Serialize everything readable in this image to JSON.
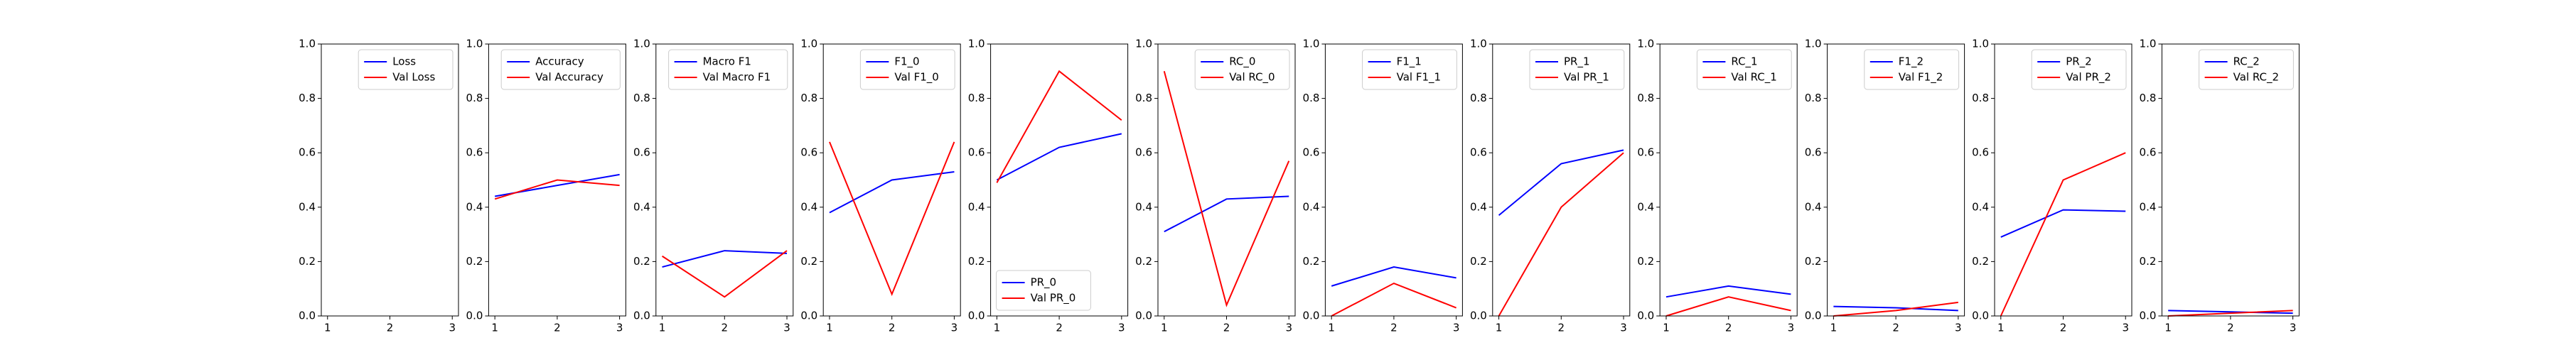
{
  "chart_data": [
    {
      "type": "line",
      "x": [
        1,
        2,
        3
      ],
      "xlim": [
        0.9,
        3.1
      ],
      "xticks": [
        1,
        2,
        3
      ],
      "ylim": [
        0,
        1
      ],
      "yticks": [
        {
          "value": 0,
          "label": "0.0"
        },
        0.2,
        0.4,
        0.6,
        0.8,
        {
          "value": 1,
          "label": "1.0"
        }
      ],
      "legend": "upper right",
      "series": [
        {
          "name": "Loss",
          "color": "#0000ff",
          "values": [
            null,
            null,
            null
          ]
        },
        {
          "name": "Val Loss",
          "color": "#ff0000",
          "values": [
            null,
            null,
            null
          ]
        }
      ]
    },
    {
      "type": "line",
      "x": [
        1,
        2,
        3
      ],
      "xlim": [
        0.9,
        3.1
      ],
      "xticks": [
        1,
        2,
        3
      ],
      "ylim": [
        0,
        1
      ],
      "yticks": [
        {
          "value": 0,
          "label": "0.0"
        },
        0.2,
        0.4,
        0.6,
        0.8,
        {
          "value": 1,
          "label": "1.0"
        }
      ],
      "legend": "upper right",
      "series": [
        {
          "name": "Accuracy",
          "color": "#0000ff",
          "values": [
            0.44,
            0.48,
            0.52
          ]
        },
        {
          "name": "Val Accuracy",
          "color": "#ff0000",
          "values": [
            0.43,
            0.5,
            0.48
          ]
        }
      ]
    },
    {
      "type": "line",
      "x": [
        1,
        2,
        3
      ],
      "xlim": [
        0.9,
        3.1
      ],
      "xticks": [
        1,
        2,
        3
      ],
      "ylim": [
        0,
        1
      ],
      "yticks": [
        {
          "value": 0,
          "label": "0.0"
        },
        0.2,
        0.4,
        0.6,
        0.8,
        {
          "value": 1,
          "label": "1.0"
        }
      ],
      "legend": "upper right",
      "series": [
        {
          "name": "Macro F1",
          "color": "#0000ff",
          "values": [
            0.18,
            0.24,
            0.23
          ]
        },
        {
          "name": "Val Macro F1",
          "color": "#ff0000",
          "values": [
            0.22,
            0.07,
            0.24
          ]
        }
      ]
    },
    {
      "type": "line",
      "x": [
        1,
        2,
        3
      ],
      "xlim": [
        0.9,
        3.1
      ],
      "xticks": [
        1,
        2,
        3
      ],
      "ylim": [
        0,
        1
      ],
      "yticks": [
        {
          "value": 0,
          "label": "0.0"
        },
        0.2,
        0.4,
        0.6,
        0.8,
        {
          "value": 1,
          "label": "1.0"
        }
      ],
      "legend": "upper right",
      "series": [
        {
          "name": "F1_0",
          "color": "#0000ff",
          "values": [
            0.38,
            0.5,
            0.53
          ]
        },
        {
          "name": "Val F1_0",
          "color": "#ff0000",
          "values": [
            0.64,
            0.08,
            0.64
          ]
        }
      ]
    },
    {
      "type": "line",
      "x": [
        1,
        2,
        3
      ],
      "xlim": [
        0.9,
        3.1
      ],
      "xticks": [
        1,
        2,
        3
      ],
      "ylim": [
        0,
        1
      ],
      "yticks": [
        {
          "value": 0,
          "label": "0.0"
        },
        0.2,
        0.4,
        0.6,
        0.8,
        {
          "value": 1,
          "label": "1.0"
        }
      ],
      "legend": "lower left",
      "series": [
        {
          "name": "PR_0",
          "color": "#0000ff",
          "values": [
            0.5,
            0.62,
            0.67
          ]
        },
        {
          "name": "Val PR_0",
          "color": "#ff0000",
          "values": [
            0.49,
            0.9,
            0.72
          ]
        }
      ]
    },
    {
      "type": "line",
      "x": [
        1,
        2,
        3
      ],
      "xlim": [
        0.9,
        3.1
      ],
      "xticks": [
        1,
        2,
        3
      ],
      "ylim": [
        0,
        1
      ],
      "yticks": [
        {
          "value": 0,
          "label": "0.0"
        },
        0.2,
        0.4,
        0.6,
        0.8,
        {
          "value": 1,
          "label": "1.0"
        }
      ],
      "legend": "upper right",
      "series": [
        {
          "name": "RC_0",
          "color": "#0000ff",
          "values": [
            0.31,
            0.43,
            0.44
          ]
        },
        {
          "name": "Val RC_0",
          "color": "#ff0000",
          "values": [
            0.9,
            0.04,
            0.57
          ]
        }
      ]
    },
    {
      "type": "line",
      "x": [
        1,
        2,
        3
      ],
      "xlim": [
        0.9,
        3.1
      ],
      "xticks": [
        1,
        2,
        3
      ],
      "ylim": [
        0,
        1
      ],
      "yticks": [
        {
          "value": 0,
          "label": "0.0"
        },
        0.2,
        0.4,
        0.6,
        0.8,
        {
          "value": 1,
          "label": "1.0"
        }
      ],
      "legend": "upper right",
      "series": [
        {
          "name": "F1_1",
          "color": "#0000ff",
          "values": [
            0.11,
            0.18,
            0.14
          ]
        },
        {
          "name": "Val F1_1",
          "color": "#ff0000",
          "values": [
            0.0,
            0.12,
            0.03
          ]
        }
      ]
    },
    {
      "type": "line",
      "x": [
        1,
        2,
        3
      ],
      "xlim": [
        0.9,
        3.1
      ],
      "xticks": [
        1,
        2,
        3
      ],
      "ylim": [
        0,
        1
      ],
      "yticks": [
        {
          "value": 0,
          "label": "0.0"
        },
        0.2,
        0.4,
        0.6,
        0.8,
        {
          "value": 1,
          "label": "1.0"
        }
      ],
      "legend": "upper right",
      "series": [
        {
          "name": "PR_1",
          "color": "#0000ff",
          "values": [
            0.37,
            0.56,
            0.61
          ]
        },
        {
          "name": "Val PR_1",
          "color": "#ff0000",
          "values": [
            0.0,
            0.4,
            0.6
          ]
        }
      ]
    },
    {
      "type": "line",
      "x": [
        1,
        2,
        3
      ],
      "xlim": [
        0.9,
        3.1
      ],
      "xticks": [
        1,
        2,
        3
      ],
      "ylim": [
        0,
        1
      ],
      "yticks": [
        {
          "value": 0,
          "label": "0.0"
        },
        0.2,
        0.4,
        0.6,
        0.8,
        {
          "value": 1,
          "label": "1.0"
        }
      ],
      "legend": "upper right",
      "series": [
        {
          "name": "RC_1",
          "color": "#0000ff",
          "values": [
            0.07,
            0.11,
            0.08
          ]
        },
        {
          "name": "Val RC_1",
          "color": "#ff0000",
          "values": [
            0.0,
            0.07,
            0.02
          ]
        }
      ]
    },
    {
      "type": "line",
      "x": [
        1,
        2,
        3
      ],
      "xlim": [
        0.9,
        3.1
      ],
      "xticks": [
        1,
        2,
        3
      ],
      "ylim": [
        0,
        1
      ],
      "yticks": [
        {
          "value": 0,
          "label": "0.0"
        },
        0.2,
        0.4,
        0.6,
        0.8,
        {
          "value": 1,
          "label": "1.0"
        }
      ],
      "legend": "upper right",
      "series": [
        {
          "name": "F1_2",
          "color": "#0000ff",
          "values": [
            0.035,
            0.03,
            0.02
          ]
        },
        {
          "name": "Val F1_2",
          "color": "#ff0000",
          "values": [
            0.0,
            0.02,
            0.05
          ]
        }
      ]
    },
    {
      "type": "line",
      "x": [
        1,
        2,
        3
      ],
      "xlim": [
        0.9,
        3.1
      ],
      "xticks": [
        1,
        2,
        3
      ],
      "ylim": [
        0,
        1
      ],
      "yticks": [
        {
          "value": 0,
          "label": "0.0"
        },
        0.2,
        0.4,
        0.6,
        0.8,
        {
          "value": 1,
          "label": "1.0"
        }
      ],
      "legend": "upper right",
      "series": [
        {
          "name": "PR_2",
          "color": "#0000ff",
          "values": [
            0.29,
            0.39,
            0.385
          ]
        },
        {
          "name": "Val PR_2",
          "color": "#ff0000",
          "values": [
            0.0,
            0.5,
            0.6
          ]
        }
      ]
    },
    {
      "type": "line",
      "x": [
        1,
        2,
        3
      ],
      "xlim": [
        0.9,
        3.1
      ],
      "xticks": [
        1,
        2,
        3
      ],
      "ylim": [
        0,
        1
      ],
      "yticks": [
        {
          "value": 0,
          "label": "0.0"
        },
        0.2,
        0.4,
        0.6,
        0.8,
        {
          "value": 1,
          "label": "1.0"
        }
      ],
      "legend": "upper right",
      "series": [
        {
          "name": "RC_2",
          "color": "#0000ff",
          "values": [
            0.02,
            0.015,
            0.01
          ]
        },
        {
          "name": "Val RC_2",
          "color": "#ff0000",
          "values": [
            0.0,
            0.01,
            0.02
          ]
        }
      ]
    }
  ]
}
